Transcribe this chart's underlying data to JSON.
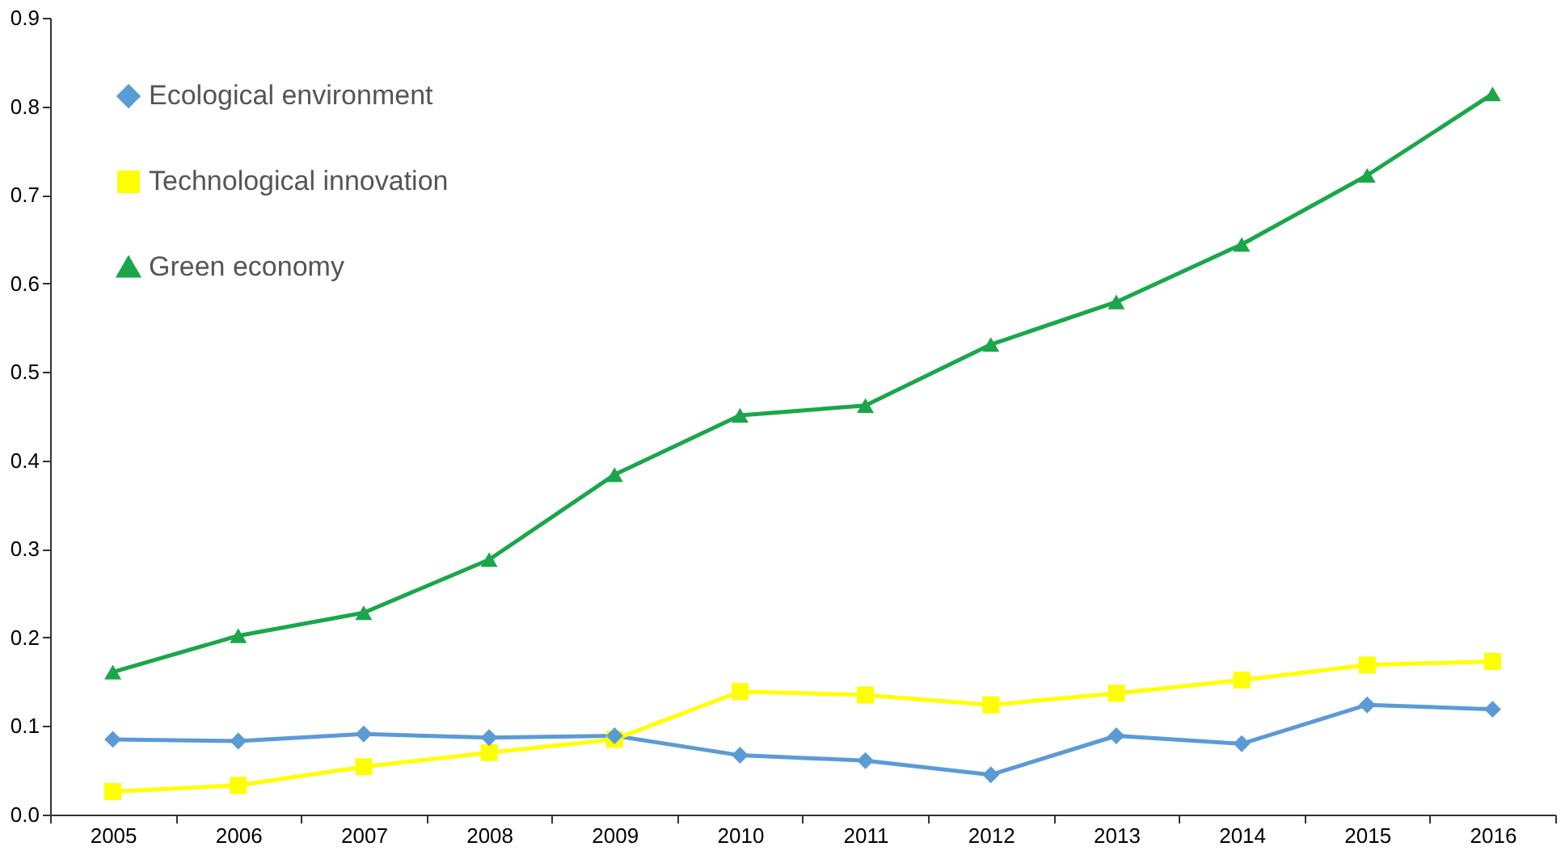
{
  "chart_data": {
    "type": "line",
    "categories": [
      "2005",
      "2006",
      "2007",
      "2008",
      "2009",
      "2010",
      "2011",
      "2012",
      "2013",
      "2014",
      "2015",
      "2016"
    ],
    "series": [
      {
        "name": "Ecological environment",
        "color": "#5b9bd5",
        "marker": "diamond",
        "values": [
          0.085,
          0.083,
          0.091,
          0.087,
          0.089,
          0.067,
          0.061,
          0.045,
          0.089,
          0.08,
          0.124,
          0.119
        ]
      },
      {
        "name": "Technological innovation",
        "color": "#ffff00",
        "marker": "square",
        "values": [
          0.026,
          0.033,
          0.054,
          0.07,
          0.085,
          0.139,
          0.135,
          0.124,
          0.137,
          0.152,
          0.169,
          0.173
        ]
      },
      {
        "name": "Green economy",
        "color": "#1aa64a",
        "marker": "triangle",
        "values": [
          0.161,
          0.202,
          0.228,
          0.288,
          0.384,
          0.451,
          0.462,
          0.531,
          0.579,
          0.644,
          0.722,
          0.814
        ]
      }
    ],
    "ylim": [
      0,
      0.9
    ],
    "yticks": [
      {
        "value": 0,
        "label": "0.0"
      },
      0.1,
      0.2,
      0.3,
      0.4,
      0.5,
      0.6,
      0.7,
      0.8,
      0.9
    ],
    "grid": false,
    "legend": "top left",
    "line_style": "solid"
  }
}
